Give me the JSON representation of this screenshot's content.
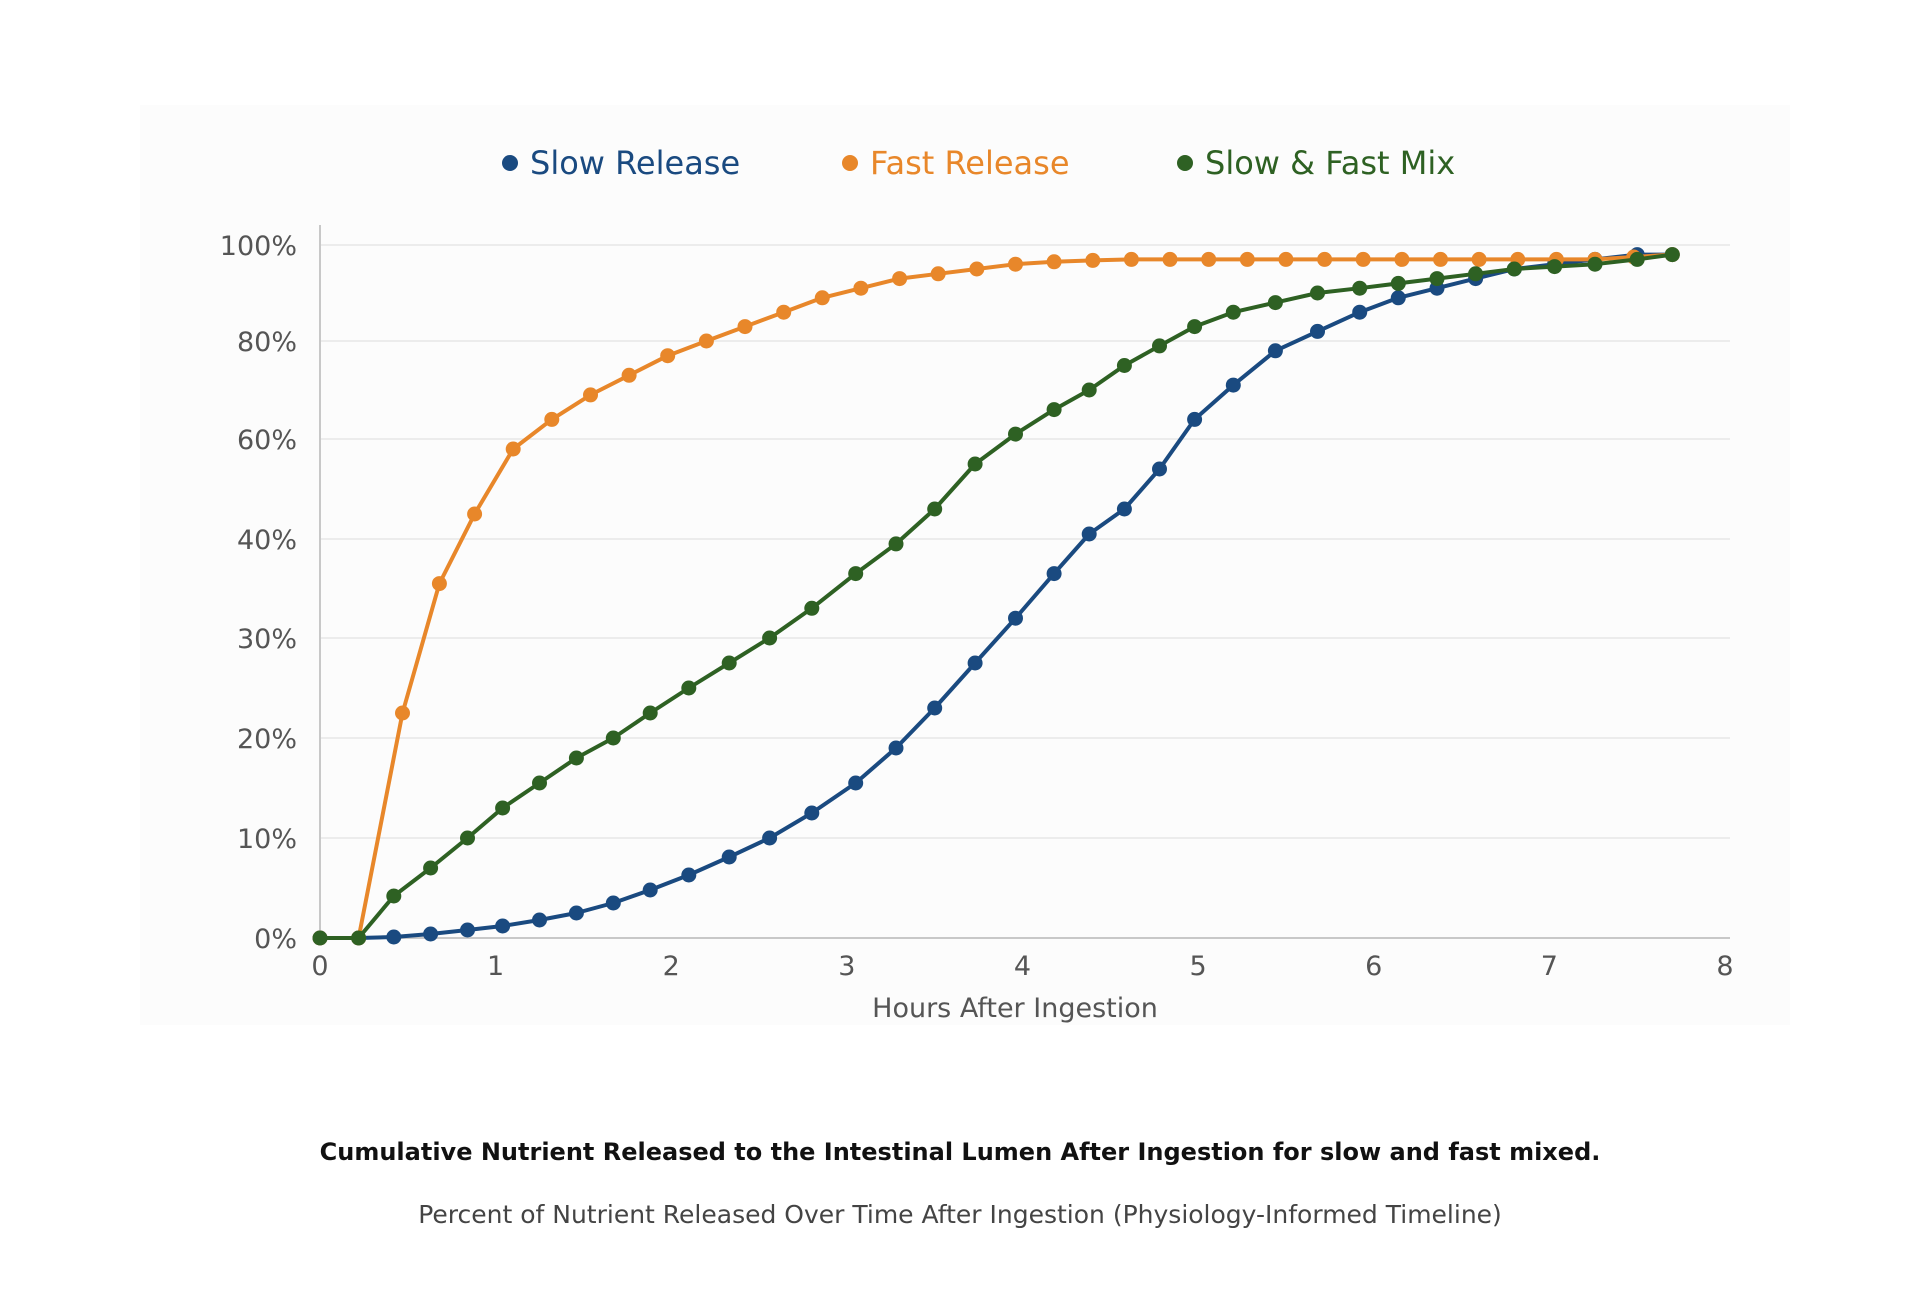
{
  "chart_data": {
    "type": "line",
    "title": "Cumulative Nutrient Released to the Intestinal Lumen After Ingestion for slow and fast mixed.",
    "subtitle": "Percent of Nutrient Released Over Time After Ingestion (Physiology-Informed Timeline)",
    "xlabel": "Hours After Ingestion",
    "ylabel": "",
    "xlim": [
      0,
      8
    ],
    "x_ticks": [
      "0",
      "1",
      "2",
      "3",
      "4",
      "5",
      "6",
      "7",
      "8"
    ],
    "y_ticks": [
      "0%",
      "10%",
      "20%",
      "30%",
      "40%",
      "60%",
      "80%",
      "100%"
    ],
    "y_axis_note": "non-uniform scale: 0-40% evenly spaced, then 40/60/80/100% evenly spaced",
    "grid": true,
    "legend_position": "top-center",
    "series": [
      {
        "name": "Slow Release",
        "color": "#1a4a80",
        "points": [
          [
            0,
            0
          ],
          [
            0.22,
            0
          ],
          [
            0.42,
            0.1
          ],
          [
            0.63,
            0.4
          ],
          [
            0.84,
            0.8
          ],
          [
            1.04,
            1.2
          ],
          [
            1.25,
            1.8
          ],
          [
            1.46,
            2.5
          ],
          [
            1.67,
            3.5
          ],
          [
            1.88,
            4.8
          ],
          [
            2.1,
            6.3
          ],
          [
            2.33,
            8.1
          ],
          [
            2.56,
            10
          ],
          [
            2.8,
            12.5
          ],
          [
            3.05,
            15.5
          ],
          [
            3.28,
            19
          ],
          [
            3.5,
            23
          ],
          [
            3.73,
            27.5
          ],
          [
            3.96,
            32
          ],
          [
            4.18,
            36.5
          ],
          [
            4.38,
            41
          ],
          [
            4.58,
            46
          ],
          [
            4.78,
            54
          ],
          [
            4.98,
            64
          ],
          [
            5.2,
            71
          ],
          [
            5.44,
            78
          ],
          [
            5.68,
            82
          ],
          [
            5.92,
            86
          ],
          [
            6.14,
            89
          ],
          [
            6.36,
            91
          ],
          [
            6.58,
            93
          ],
          [
            6.8,
            95
          ],
          [
            7.03,
            96
          ],
          [
            7.26,
            97
          ],
          [
            7.5,
            98
          ],
          [
            7.7,
            98
          ]
        ]
      },
      {
        "name": "Fast Release",
        "color": "#e8872a",
        "points": [
          [
            0,
            0
          ],
          [
            0.22,
            0
          ],
          [
            0.47,
            22.5
          ],
          [
            0.68,
            35.5
          ],
          [
            0.88,
            45
          ],
          [
            1.1,
            58
          ],
          [
            1.32,
            64
          ],
          [
            1.54,
            69
          ],
          [
            1.76,
            73
          ],
          [
            1.98,
            77
          ],
          [
            2.2,
            80
          ],
          [
            2.42,
            83
          ],
          [
            2.64,
            86
          ],
          [
            2.86,
            89
          ],
          [
            3.08,
            91
          ],
          [
            3.3,
            93
          ],
          [
            3.52,
            94
          ],
          [
            3.74,
            95
          ],
          [
            3.96,
            96
          ],
          [
            4.18,
            96.5
          ],
          [
            4.4,
            96.8
          ],
          [
            4.62,
            97
          ],
          [
            4.84,
            97
          ],
          [
            5.06,
            97
          ],
          [
            5.28,
            97
          ],
          [
            5.5,
            97
          ],
          [
            5.72,
            97
          ],
          [
            5.94,
            97
          ],
          [
            6.16,
            97
          ],
          [
            6.38,
            97
          ],
          [
            6.6,
            97
          ],
          [
            6.82,
            97
          ],
          [
            7.04,
            97
          ],
          [
            7.26,
            97
          ],
          [
            7.48,
            97.5
          ],
          [
            7.7,
            98
          ]
        ]
      },
      {
        "name": "Slow & Fast Mix",
        "color": "#2e6123",
        "points": [
          [
            0,
            0
          ],
          [
            0.22,
            0
          ],
          [
            0.42,
            4.2
          ],
          [
            0.63,
            7
          ],
          [
            0.84,
            10
          ],
          [
            1.04,
            13
          ],
          [
            1.25,
            15.5
          ],
          [
            1.46,
            18
          ],
          [
            1.67,
            20
          ],
          [
            1.88,
            22.5
          ],
          [
            2.1,
            25
          ],
          [
            2.33,
            27.5
          ],
          [
            2.56,
            30
          ],
          [
            2.8,
            33
          ],
          [
            3.05,
            36.5
          ],
          [
            3.28,
            39.5
          ],
          [
            3.5,
            46
          ],
          [
            3.73,
            55
          ],
          [
            3.96,
            61
          ],
          [
            4.18,
            66
          ],
          [
            4.38,
            70
          ],
          [
            4.58,
            75
          ],
          [
            4.78,
            79
          ],
          [
            4.98,
            83
          ],
          [
            5.2,
            86
          ],
          [
            5.44,
            88
          ],
          [
            5.68,
            90
          ],
          [
            5.92,
            91
          ],
          [
            6.14,
            92
          ],
          [
            6.36,
            93
          ],
          [
            6.58,
            94
          ],
          [
            6.8,
            95
          ],
          [
            7.03,
            95.5
          ],
          [
            7.26,
            96
          ],
          [
            7.5,
            97
          ],
          [
            7.7,
            98
          ]
        ]
      }
    ]
  }
}
